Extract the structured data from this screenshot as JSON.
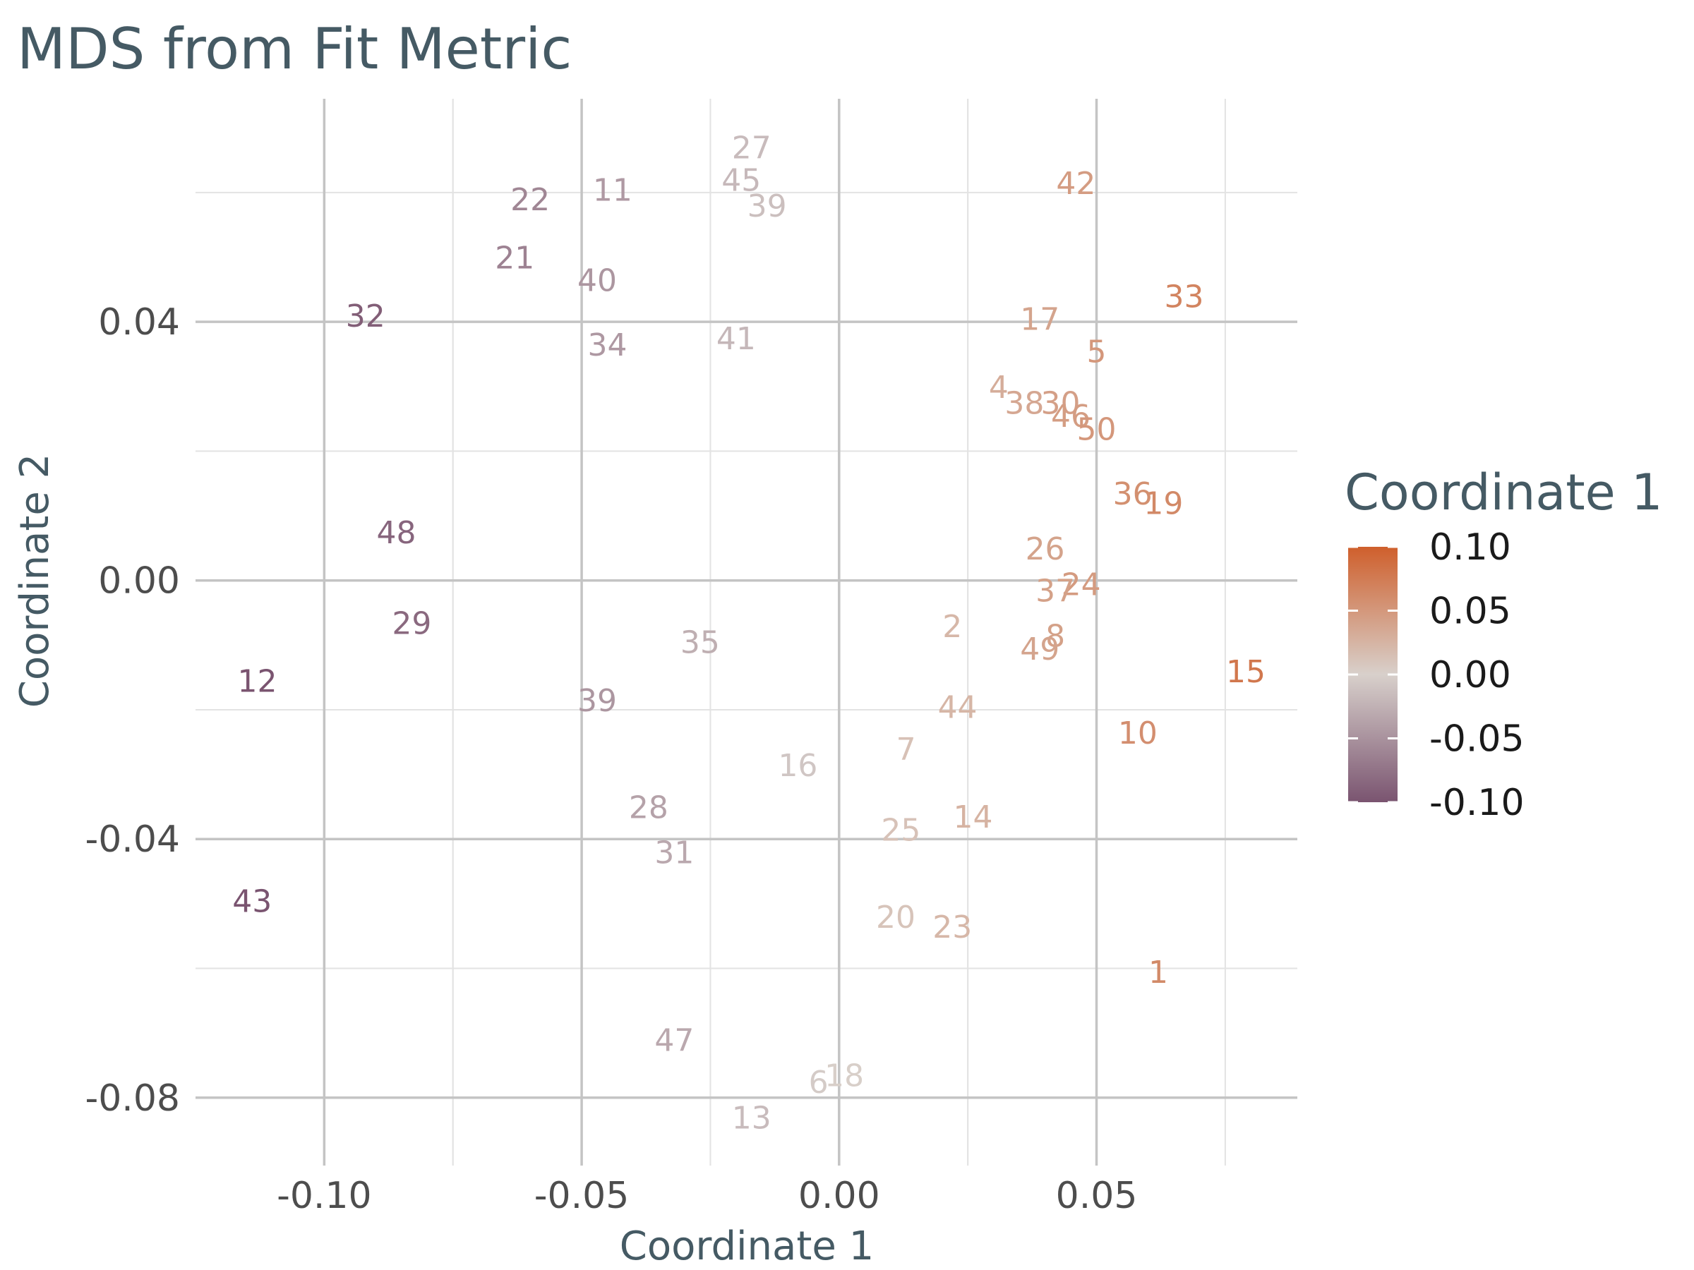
{
  "chart_data": {
    "type": "scatter",
    "title": "MDS from Fit Metric",
    "xlabel": "Coordinate 1",
    "ylabel": "Coordinate 2",
    "xlim": [
      -0.125,
      0.089
    ],
    "ylim": [
      -0.0905,
      0.0745
    ],
    "xticks": [
      -0.1,
      -0.05,
      0.0,
      0.05
    ],
    "xtick_labels": [
      "-0.10",
      "-0.05",
      "0.00",
      "0.05"
    ],
    "yticks": [
      0.04,
      0.0,
      -0.04,
      -0.08
    ],
    "ytick_labels": [
      "0.04",
      "0.00",
      "-0.04",
      "-0.08"
    ],
    "grid": true,
    "legend": {
      "title": "Coordinate 1",
      "position": "right",
      "ticks": [
        "0.10",
        "0.05",
        "0.00",
        "-0.05",
        "-0.10"
      ],
      "tick_values": [
        0.1,
        0.05,
        0.0,
        -0.05,
        -0.1
      ],
      "range": [
        -0.1,
        0.1
      ]
    },
    "colors": {
      "low": "#7a5470",
      "mid": "#d8d0cb",
      "high": "#cf5f2c"
    },
    "points": [
      {
        "label": "1",
        "x": 0.062,
        "y": -0.0605
      },
      {
        "label": "2",
        "x": 0.022,
        "y": -0.007
      },
      {
        "label": "4",
        "x": 0.031,
        "y": 0.03
      },
      {
        "label": "5",
        "x": 0.05,
        "y": 0.0355
      },
      {
        "label": "6",
        "x": -0.004,
        "y": -0.0775
      },
      {
        "label": "7",
        "x": 0.013,
        "y": -0.026
      },
      {
        "label": "8",
        "x": 0.042,
        "y": -0.0085
      },
      {
        "label": "10",
        "x": 0.058,
        "y": -0.0235
      },
      {
        "label": "11",
        "x": -0.044,
        "y": 0.0605
      },
      {
        "label": "12",
        "x": -0.113,
        "y": -0.0155
      },
      {
        "label": "13",
        "x": -0.017,
        "y": -0.083
      },
      {
        "label": "14",
        "x": 0.026,
        "y": -0.0365
      },
      {
        "label": "15",
        "x": 0.079,
        "y": -0.014
      },
      {
        "label": "16",
        "x": -0.008,
        "y": -0.0285
      },
      {
        "label": "17",
        "x": 0.039,
        "y": 0.0405
      },
      {
        "label": "18",
        "x": 0.001,
        "y": -0.0765
      },
      {
        "label": "19",
        "x": 0.063,
        "y": 0.012
      },
      {
        "label": "20",
        "x": 0.011,
        "y": -0.052
      },
      {
        "label": "21",
        "x": -0.063,
        "y": 0.05
      },
      {
        "label": "22",
        "x": -0.06,
        "y": 0.059
      },
      {
        "label": "23",
        "x": 0.022,
        "y": -0.0535
      },
      {
        "label": "24",
        "x": 0.047,
        "y": -0.0005
      },
      {
        "label": "25",
        "x": 0.012,
        "y": -0.0385
      },
      {
        "label": "26",
        "x": 0.04,
        "y": 0.005
      },
      {
        "label": "27",
        "x": -0.017,
        "y": 0.067
      },
      {
        "label": "28",
        "x": -0.037,
        "y": -0.035
      },
      {
        "label": "29",
        "x": -0.083,
        "y": -0.0065
      },
      {
        "label": "30",
        "x": 0.043,
        "y": 0.0275
      },
      {
        "label": "31",
        "x": -0.032,
        "y": -0.042
      },
      {
        "label": "32",
        "x": -0.092,
        "y": 0.041
      },
      {
        "label": "33",
        "x": 0.067,
        "y": 0.044
      },
      {
        "label": "34",
        "x": -0.045,
        "y": 0.0365
      },
      {
        "label": "35",
        "x": -0.027,
        "y": -0.0095
      },
      {
        "label": "36",
        "x": 0.057,
        "y": 0.0135
      },
      {
        "label": "37",
        "x": 0.042,
        "y": -0.0015
      },
      {
        "label": "38",
        "x": 0.036,
        "y": 0.0275
      },
      {
        "label": "39",
        "x": -0.014,
        "y": 0.058
      },
      {
        "label": "39",
        "x": -0.047,
        "y": -0.0185
      },
      {
        "label": "40",
        "x": -0.047,
        "y": 0.0465
      },
      {
        "label": "41",
        "x": -0.02,
        "y": 0.0375
      },
      {
        "label": "42",
        "x": 0.046,
        "y": 0.0615
      },
      {
        "label": "43",
        "x": -0.114,
        "y": -0.0495
      },
      {
        "label": "44",
        "x": 0.023,
        "y": -0.0195
      },
      {
        "label": "45",
        "x": -0.019,
        "y": 0.062
      },
      {
        "label": "46",
        "x": 0.045,
        "y": 0.0255
      },
      {
        "label": "47",
        "x": -0.032,
        "y": -0.071
      },
      {
        "label": "49",
        "x": 0.039,
        "y": -0.0105
      },
      {
        "label": "50",
        "x": 0.05,
        "y": 0.0235
      },
      {
        "label": "48",
        "x": -0.086,
        "y": 0.0075
      }
    ]
  }
}
